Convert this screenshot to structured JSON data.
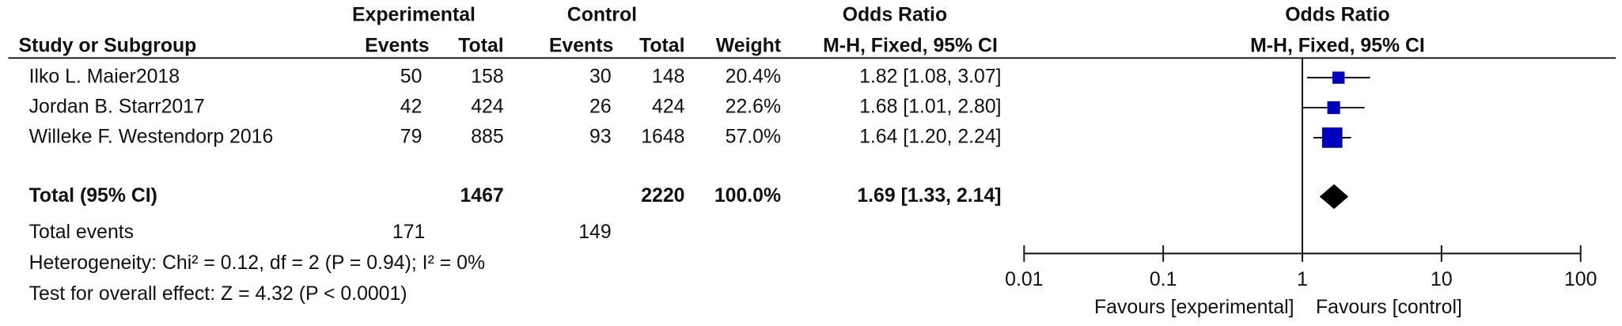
{
  "chart_data": {
    "type": "forest",
    "headers": {
      "group_exp": "Experimental",
      "group_ctl": "Control",
      "or_table": "Odds Ratio",
      "or_plot": "Odds Ratio",
      "study": "Study or Subgroup",
      "events_exp": "Events",
      "total_exp": "Total",
      "events_ctl": "Events",
      "total_ctl": "Total",
      "weight": "Weight",
      "method_table": "M-H, Fixed, 95% CI",
      "method_plot": "M-H, Fixed, 95% CI"
    },
    "studies": [
      {
        "name": "Ilko L. Maier2018",
        "events_exp": 50,
        "total_exp": 158,
        "events_ctl": 30,
        "total_ctl": 148,
        "weight": 20.4,
        "weight_label": "20.4%",
        "or": 1.82,
        "ci_low": 1.08,
        "ci_high": 3.07,
        "ci_label": "1.82 [1.08, 3.07]"
      },
      {
        "name": "Jordan B. Starr2017",
        "events_exp": 42,
        "total_exp": 424,
        "events_ctl": 26,
        "total_ctl": 424,
        "weight": 22.6,
        "weight_label": "22.6%",
        "or": 1.68,
        "ci_low": 1.01,
        "ci_high": 2.8,
        "ci_label": "1.68 [1.01, 2.80]"
      },
      {
        "name": "Willeke F. Westendorp 2016",
        "events_exp": 79,
        "total_exp": 885,
        "events_ctl": 93,
        "total_ctl": 1648,
        "weight": 57.0,
        "weight_label": "57.0%",
        "or": 1.64,
        "ci_low": 1.2,
        "ci_high": 2.24,
        "ci_label": "1.64 [1.20, 2.24]"
      }
    ],
    "total": {
      "name": "Total (95% CI)",
      "total_exp": 1467,
      "total_ctl": 2220,
      "weight": 100.0,
      "weight_label": "100.0%",
      "or": 1.69,
      "ci_low": 1.33,
      "ci_high": 2.14,
      "ci_label": "1.69 [1.33, 2.14]"
    },
    "total_events": {
      "label": "Total events",
      "exp": 171,
      "ctl": 149
    },
    "heterogeneity": "Heterogeneity: Chi² = 0.12, df = 2 (P = 0.94); I² = 0%",
    "overall_effect": "Test for overall effect: Z = 4.32 (P < 0.0001)",
    "xlim": [
      0.01,
      100
    ],
    "xticks": [
      0.01,
      0.1,
      1,
      10,
      100
    ],
    "log_x": true,
    "favours_left": "Favours [experimental]",
    "favours_right": "Favours [control]",
    "marker_color": "#0000c0",
    "total_color": "#000000"
  }
}
